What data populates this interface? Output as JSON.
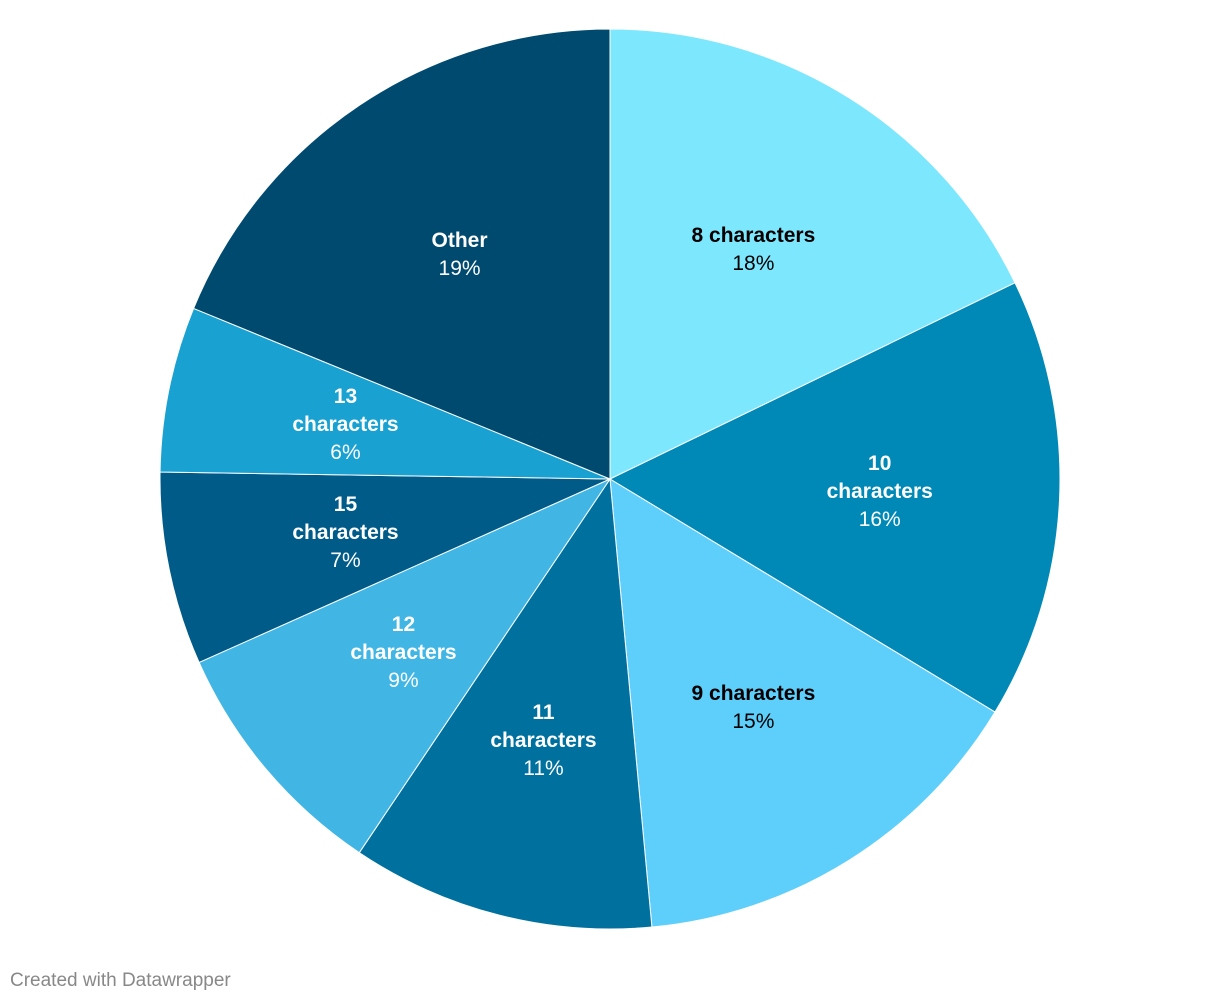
{
  "chart_data": {
    "type": "pie",
    "categories": [
      "8 characters",
      "10 characters",
      "9 characters",
      "11 characters",
      "12 characters",
      "15 characters",
      "13 characters",
      "Other"
    ],
    "values": [
      18,
      16,
      15,
      11,
      9,
      7,
      6,
      19
    ],
    "value_labels": [
      "18%",
      "16%",
      "15%",
      "11%",
      "9%",
      "7%",
      "6%",
      "19%"
    ],
    "colors": [
      "#7de7fe",
      "#0089b6",
      "#5ecefb",
      "#00719e",
      "#41b6e4",
      "#005b88",
      "#19a1d1",
      "#004a70"
    ],
    "label_colors": [
      "#000000",
      "#ffffff",
      "#000000",
      "#ffffff",
      "#ffffff",
      "#ffffff",
      "#ffffff",
      "#ffffff"
    ],
    "footer": "Created with Datawrapper"
  }
}
